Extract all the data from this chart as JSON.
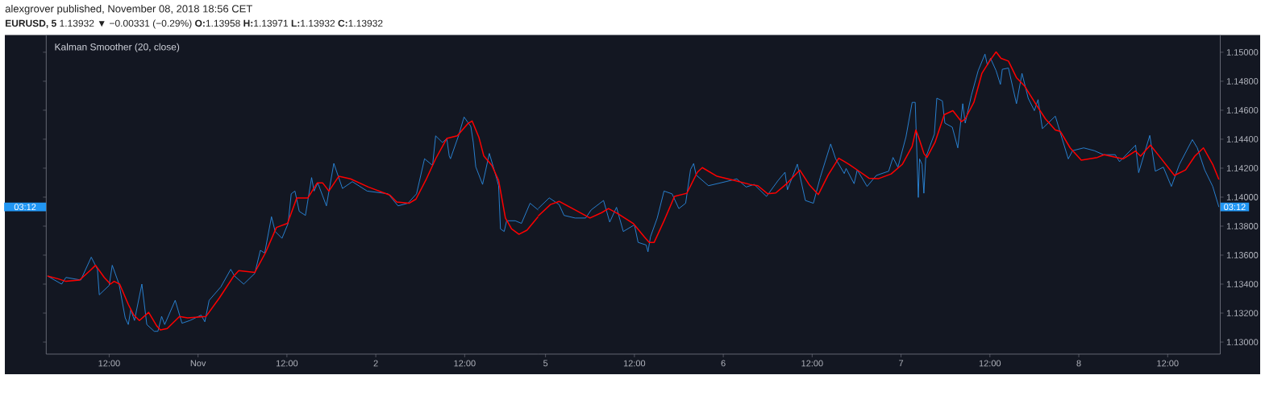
{
  "chart_data": [
    {
      "type": "line",
      "title": "alexgrover published, November 08, 2018 18:56 CET",
      "subtitle": "**EURUSD, 5** 1.13932 ▼ −0.00331 (−0.29%) **O:**1.13958 **H:**1.13971 **L:**1.13932 **C:**1.13932",
      "annotations": [
        "Kalman Smoother (20, close)",
        "03:12"
      ],
      "xlim": [
        "2018-10-31T03:30",
        "2018-11-02T21:55"
      ],
      "xticks": [
        {
          "value": "2018-10-31T12:00",
          "label": "12:00"
        },
        {
          "value": "2018-11-01",
          "label": "Nov"
        },
        {
          "value": "2018-11-01T12:00",
          "label": "12:00"
        },
        {
          "value": "2018-11-02",
          "label": "2"
        },
        {
          "value": "2018-11-02T12:00",
          "label": "12:00"
        }
      ],
      "ylim": [
        1.12917,
        1.15119
      ],
      "yticks": [
        1.13,
        1.132,
        1.134,
        1.136,
        1.138,
        1.14,
        1.142,
        1.144,
        1.146,
        1.148,
        1.15
      ],
      "tick_labels": "x",
      "series": [
        {
          "color": "#2a8ae0",
          "x": [
            "2018-10-31T03:40",
            "2018-10-31T05:35",
            "2018-10-31T06:10",
            "2018-10-31T08:10",
            "2018-10-31T09:35",
            "2018-10-31T10:25",
            "2018-10-31T10:40",
            "2018-10-31T12:00",
            "2018-10-31T12:25",
            "2018-10-31T13:20",
            "2018-10-31T14:10",
            "2018-10-31T14:35",
            "2018-10-31T14:55",
            "2018-10-31T15:25",
            "2018-10-31T16:25",
            "2018-10-31T17:05",
            "2018-10-31T18:05",
            "2018-10-31T18:35",
            "2018-10-31T19:05",
            "2018-10-31T19:30",
            "2018-10-31T20:55",
            "2018-10-31T21:50",
            "2018-10-31T22:55",
            "2018-11-01T00:25",
            "2018-11-01T00:55",
            "2018-11-01T01:30",
            "2018-11-01T03:05",
            "2018-11-01T04:25",
            "2018-11-01T04:55",
            "2018-11-01T06:10",
            "2018-11-01T07:40",
            "2018-11-01T08:25",
            "2018-11-01T09:00",
            "2018-11-01T09:55",
            "2018-11-01T10:25",
            "2018-11-01T11:20",
            "2018-11-01T12:10",
            "2018-11-01T12:35",
            "2018-11-01T13:05",
            "2018-11-01T13:40",
            "2018-11-01T14:30",
            "2018-11-01T15:20",
            "2018-11-01T15:40",
            "2018-11-01T16:10",
            "2018-11-01T17:20",
            "2018-11-01T18:20",
            "2018-11-01T19:30",
            "2018-11-01T20:50",
            "2018-11-01T22:50",
            "2018-11-02T01:40",
            "2018-11-02T03:00",
            "2018-11-02T04:20",
            "2018-11-02T05:30",
            "2018-11-02T06:35",
            "2018-11-02T07:40",
            "2018-11-02T08:05",
            "2018-11-02T09:00",
            "2018-11-02T09:35",
            "2018-11-02T09:55",
            "2018-11-02T10:05",
            "2018-11-02T11:10",
            "2018-11-02T11:55",
            "2018-11-02T12:50",
            "2018-11-02T13:10",
            "2018-11-02T13:30",
            "2018-11-02T14:25",
            "2018-11-02T15:20",
            "2018-11-02T16:20",
            "2018-11-02T16:35",
            "2018-11-02T16:50",
            "2018-11-02T17:20",
            "2018-11-02T17:40",
            "2018-11-02T18:50",
            "2018-11-02T19:40",
            "2018-11-02T20:50",
            "2018-11-02T21:55"
          ],
          "values": [
            1.13456,
            1.134,
            1.13446,
            1.13428,
            1.13586,
            1.13502,
            1.13326,
            1.13391,
            1.1353,
            1.134,
            1.13167,
            1.13121,
            1.13223,
            1.13149,
            1.134,
            1.13121,
            1.13074,
            1.13074,
            1.13177,
            1.13121,
            1.13288,
            1.1313,
            1.13149,
            1.13186,
            1.1314,
            1.13288,
            1.13381,
            1.13502,
            1.13456,
            1.134,
            1.13474,
            1.13633,
            1.13614,
            1.13865,
            1.13763,
            1.13716,
            1.13819,
            1.14023,
            1.14042,
            1.13902,
            1.13874,
            1.14135,
            1.14042,
            1.14098,
            1.1394,
            1.14233,
            1.1406,
            1.14107,
            1.14042,
            1.14023,
            1.1394,
            1.13958,
            1.14023,
            1.14265,
            1.14219,
            1.14423,
            1.14377,
            1.14405,
            1.14284,
            1.14265,
            1.14423,
            1.14553,
            1.14488,
            1.14377,
            1.14209,
            1.14088,
            1.14302,
            1.14126,
            1.14079,
            1.13781,
            1.13763,
            1.13837,
            1.13837,
            1.13819,
            1.13958,
            1.13912
          ]
        },
        {
          "color": "#ff0000",
          "x": [
            "2018-10-31T03:40",
            "2018-10-31T05:05",
            "2018-10-31T06:10",
            "2018-10-31T08:00",
            "2018-10-31T09:25",
            "2018-10-31T10:10",
            "2018-10-31T11:20",
            "2018-10-31T12:10",
            "2018-10-31T12:40",
            "2018-10-31T13:25",
            "2018-10-31T14:35",
            "2018-10-31T15:20",
            "2018-10-31T16:05",
            "2018-10-31T17:20",
            "2018-10-31T18:25",
            "2018-10-31T18:55",
            "2018-10-31T19:50",
            "2018-10-31T21:30",
            "2018-10-31T22:35",
            "2018-11-01T01:05",
            "2018-11-01T02:55",
            "2018-11-01T04:50",
            "2018-11-01T05:30",
            "2018-11-01T07:40",
            "2018-11-01T09:05",
            "2018-11-01T10:35",
            "2018-11-01T12:05",
            "2018-11-01T13:20",
            "2018-11-01T14:50",
            "2018-11-01T16:05",
            "2018-11-01T16:50",
            "2018-11-01T17:40",
            "2018-11-01T19:00",
            "2018-11-01T20:35",
            "2018-11-01T23:00",
            "2018-11-02T01:55",
            "2018-11-02T02:50",
            "2018-11-02T04:30",
            "2018-11-02T05:25",
            "2018-11-02T06:50",
            "2018-11-02T08:05",
            "2018-11-02T09:35",
            "2018-11-02T11:00",
            "2018-11-02T12:25",
            "2018-11-02T13:00",
            "2018-11-02T13:55",
            "2018-11-02T14:35",
            "2018-11-02T15:40",
            "2018-11-02T16:35",
            "2018-11-02T17:30",
            "2018-11-02T18:20",
            "2018-11-02T19:20",
            "2018-11-02T20:25",
            "2018-11-02T21:55"
          ],
          "values": [
            1.13456,
            1.13437,
            1.13419,
            1.13428,
            1.13493,
            1.1353,
            1.13446,
            1.134,
            1.13419,
            1.134,
            1.1326,
            1.13186,
            1.13149,
            1.13205,
            1.13112,
            1.13084,
            1.13093,
            1.13177,
            1.13167,
            1.13177,
            1.13307,
            1.13456,
            1.13493,
            1.13481,
            1.13614,
            1.13791,
            1.13819,
            1.13995,
            1.13995,
            1.14098,
            1.14098,
            1.14042,
            1.14144,
            1.14126,
            1.1407,
            1.14014,
            1.13967,
            1.13958,
            1.13986,
            1.14126,
            1.14265,
            1.14405,
            1.14423,
            1.14507,
            1.14526,
            1.14414,
            1.14284,
            1.14219,
            1.14116,
            1.13856,
            1.13781,
            1.13744,
            1.13772,
            1.13865
          ]
        }
      ]
    },
    {
      "type": "line",
      "annotations": [
        "03:12"
      ],
      "xlim": [
        "2018-11-04T23:00",
        "2018-11-08T19:06"
      ],
      "xticks": [
        {
          "value": "2018-11-05",
          "label": "5"
        },
        {
          "value": "2018-11-05T12:00",
          "label": "12:00"
        },
        {
          "value": "2018-11-06",
          "label": "6"
        },
        {
          "value": "2018-11-06T12:00",
          "label": "12:00"
        },
        {
          "value": "2018-11-07",
          "label": "7"
        },
        {
          "value": "2018-11-07T12:00",
          "label": "12:00"
        },
        {
          "value": "2018-11-08",
          "label": "8"
        },
        {
          "value": "2018-11-08T12:00",
          "label": "12:00"
        }
      ],
      "ylim": [
        1.12917,
        1.15119
      ],
      "yticks": [
        {
          "value": 1.13,
          "label": "1.13000"
        },
        {
          "value": 1.132,
          "label": "1.13200"
        },
        {
          "value": 1.134,
          "label": "1.13400"
        },
        {
          "value": 1.136,
          "label": "1.13600"
        },
        {
          "value": 1.138,
          "label": "1.13800"
        },
        {
          "value": 1.14,
          "label": "1.14000"
        },
        {
          "value": 1.142,
          "label": "1.14200"
        },
        {
          "value": 1.144,
          "label": "1.14400"
        },
        {
          "value": 1.146,
          "label": "1.14600"
        },
        {
          "value": 1.148,
          "label": "1.14800"
        },
        {
          "value": 1.15,
          "label": "1.15000"
        }
      ],
      "series": [
        {
          "color": "#2a8ae0",
          "x": [
            "2018-11-04T23:00",
            "2018-11-05T00:30",
            "2018-11-05T01:50",
            "2018-11-05T02:30",
            "2018-11-05T04:00",
            "2018-11-05T05:25",
            "2018-11-05T06:10",
            "2018-11-05T07:50",
            "2018-11-05T08:40",
            "2018-11-05T09:35",
            "2018-11-05T10:30",
            "2018-11-05T12:00",
            "2018-11-05T12:30",
            "2018-11-05T13:35",
            "2018-11-05T13:50",
            "2018-11-05T14:10",
            "2018-11-05T15:05",
            "2018-11-05T16:00",
            "2018-11-05T17:05",
            "2018-11-05T18:00",
            "2018-11-05T18:55",
            "2018-11-05T19:35",
            "2018-11-05T20:00",
            "2018-11-05T20:20",
            "2018-11-05T22:00",
            "2018-11-06T00:20",
            "2018-11-06T01:50",
            "2018-11-06T03:05",
            "2018-11-06T04:10",
            "2018-11-06T05:50",
            "2018-11-06T07:25",
            "2018-11-06T08:20",
            "2018-11-06T08:40",
            "2018-11-06T10:00",
            "2018-11-06T11:05",
            "2018-11-06T12:10",
            "2018-11-06T13:05",
            "2018-11-06T14:30",
            "2018-11-06T15:10",
            "2018-11-06T16:20",
            "2018-11-06T16:35",
            "2018-11-06T17:40",
            "2018-11-06T18:05",
            "2018-11-06T19:25",
            "2018-11-06T20:40",
            "2018-11-06T22:20",
            "2018-11-06T22:55",
            "2018-11-06T23:35",
            "2018-11-07T00:40",
            "2018-11-07T01:30",
            "2018-11-07T01:55",
            "2018-11-07T02:20",
            "2018-11-07T02:30",
            "2018-11-07T02:50",
            "2018-11-07T03:05",
            "2018-11-07T03:20",
            "2018-11-07T04:30",
            "2018-11-07T04:50",
            "2018-11-07T05:35",
            "2018-11-07T05:55",
            "2018-11-07T06:55",
            "2018-11-07T07:40",
            "2018-11-07T08:20",
            "2018-11-07T08:40",
            "2018-11-07T09:30",
            "2018-11-07T10:25",
            "2018-11-07T11:20",
            "2018-11-07T11:40",
            "2018-11-07T12:05",
            "2018-11-07T12:50",
            "2018-11-07T13:25",
            "2018-11-07T13:40",
            "2018-11-07T14:30",
            "2018-11-07T15:35",
            "2018-11-07T16:20",
            "2018-11-07T17:10",
            "2018-11-07T18:00",
            "2018-11-07T18:30",
            "2018-11-07T19:05",
            "2018-11-07T20:50",
            "2018-11-07T21:30",
            "2018-11-07T22:35",
            "2018-11-07T23:10",
            "2018-11-08T00:40",
            "2018-11-08T02:05",
            "2018-11-08T03:20",
            "2018-11-08T04:55",
            "2018-11-08T05:30",
            "2018-11-08T07:40",
            "2018-11-08T08:05",
            "2018-11-08T09:35",
            "2018-11-08T10:20",
            "2018-11-08T11:25",
            "2018-11-08T12:30",
            "2018-11-08T13:35",
            "2018-11-08T15:20",
            "2018-11-08T16:00",
            "2018-11-08T17:00",
            "2018-11-08T18:05",
            "2018-11-08T18:55"
          ],
          "values": [
            1.13921,
            1.13995,
            1.13949,
            1.13874,
            1.13856,
            1.13856,
            1.13912,
            1.13977,
            1.13828,
            1.1393,
            1.13763,
            1.13809,
            1.13688,
            1.1367,
            1.13623,
            1.13726,
            1.13856,
            1.14042,
            1.14023,
            1.13921,
            1.13958,
            1.14191,
            1.14232,
            1.14153,
            1.14079,
            1.14107,
            1.14126,
            1.1407,
            1.14088,
            1.14005,
            1.14116,
            1.14172,
            1.14051,
            1.14228,
            1.13977,
            1.13958,
            1.14135,
            1.14367,
            1.14265,
            1.14163,
            1.14198,
            1.14093,
            1.14188,
            1.14074,
            1.1415,
            1.14179,
            1.14274,
            1.14207,
            1.14416,
            1.14654,
            1.14654,
            1.13998,
            1.14264,
            1.14226,
            1.14027,
            1.14274,
            1.14435,
            1.14683,
            1.14664,
            1.14511,
            1.14483,
            1.1434,
            1.14645,
            1.14511,
            1.14702,
            1.14873,
            1.14987,
            1.14911,
            1.14958,
            1.14873,
            1.14778,
            1.14882,
            1.14891,
            1.14645,
            1.14854,
            1.14683,
            1.14597,
            1.14673,
            1.14473,
            1.14559,
            1.14445,
            1.14264,
            1.14321,
            1.1434,
            1.14321,
            1.14293,
            1.14293,
            1.14245,
            1.14359,
            1.14169,
            1.14426,
            1.14179,
            1.14207,
            1.14074,
            1.14226,
            1.14397,
            1.1434,
            1.14188,
            1.14074,
            1.13932
          ]
        },
        {
          "color": "#ff0000",
          "x": [
            "2018-11-04T23:00",
            "2018-11-05T00:40",
            "2018-11-05T01:50",
            "2018-11-05T04:00",
            "2018-11-05T06:00",
            "2018-11-05T07:35",
            "2018-11-05T08:30",
            "2018-11-05T09:50",
            "2018-11-05T11:50",
            "2018-11-05T13:20",
            "2018-11-05T14:00",
            "2018-11-05T14:40",
            "2018-11-05T16:00",
            "2018-11-05T17:25",
            "2018-11-05T19:05",
            "2018-11-05T20:30",
            "2018-11-05T21:10",
            "2018-11-05T23:10",
            "2018-11-06T01:25",
            "2018-11-06T03:35",
            "2018-11-06T04:40",
            "2018-11-06T06:00",
            "2018-11-06T07:05",
            "2018-11-06T08:40",
            "2018-11-06T10:20",
            "2018-11-06T11:35",
            "2018-11-06T12:50",
            "2018-11-06T14:10",
            "2018-11-06T15:35",
            "2018-11-06T16:20",
            "2018-11-06T17:00",
            "2018-11-06T18:20",
            "2018-11-06T19:40",
            "2018-11-06T20:55",
            "2018-11-06T22:40",
            "2018-11-07T00:10",
            "2018-11-07T01:30",
            "2018-11-07T02:00",
            "2018-11-07T02:25",
            "2018-11-07T03:05",
            "2018-11-07T03:30",
            "2018-11-07T04:35",
            "2018-11-07T05:50",
            "2018-11-07T07:00",
            "2018-11-07T08:10",
            "2018-11-07T08:40",
            "2018-11-07T09:50",
            "2018-11-07T10:55",
            "2018-11-07T12:05",
            "2018-11-07T12:50",
            "2018-11-07T13:30",
            "2018-11-07T14:30",
            "2018-11-07T15:35",
            "2018-11-07T16:40",
            "2018-11-07T18:10",
            "2018-11-07T19:30",
            "2018-11-07T20:50",
            "2018-11-07T21:30",
            "2018-11-07T22:50",
            "2018-11-08T00:20",
            "2018-11-08T02:30",
            "2018-11-08T03:25",
            "2018-11-08T06:00",
            "2018-11-08T07:40",
            "2018-11-08T08:20",
            "2018-11-08T09:40",
            "2018-11-08T11:00",
            "2018-11-08T12:55",
            "2018-11-08T14:25",
            "2018-11-08T15:40",
            "2018-11-08T16:50",
            "2018-11-08T18:05",
            "2018-11-08T18:55"
          ],
          "values": [
            1.13869,
            1.13949,
            1.13971,
            1.13912,
            1.13856,
            1.13893,
            1.13921,
            1.13884,
            1.13819,
            1.13726,
            1.13688,
            1.13688,
            1.13837,
            1.14005,
            1.14027,
            1.14172,
            1.14204,
            1.14144,
            1.14116,
            1.14088,
            1.14079,
            1.14023,
            1.14029,
            1.14098,
            1.14187,
            1.14088,
            1.14018,
            1.14153,
            1.14269,
            1.14246,
            1.14226,
            1.14179,
            1.14131,
            1.14127,
            1.1416,
            1.14226,
            1.1435,
            1.14464,
            1.14407,
            1.14302,
            1.14274,
            1.14378,
            1.14569,
            1.14597,
            1.14521,
            1.1454,
            1.14654,
            1.14854,
            1.14949,
            1.15002,
            1.14958,
            1.14939,
            1.14825,
            1.14768,
            1.14645,
            1.1454,
            1.14464,
            1.14454,
            1.1434,
            1.14255,
            1.14274,
            1.14293,
            1.14264,
            1.14318,
            1.14283,
            1.14359,
            1.14274,
            1.1415,
            1.14188,
            1.14283,
            1.1434,
            1.14226,
            1.14122
          ]
        }
      ]
    }
  ]
}
